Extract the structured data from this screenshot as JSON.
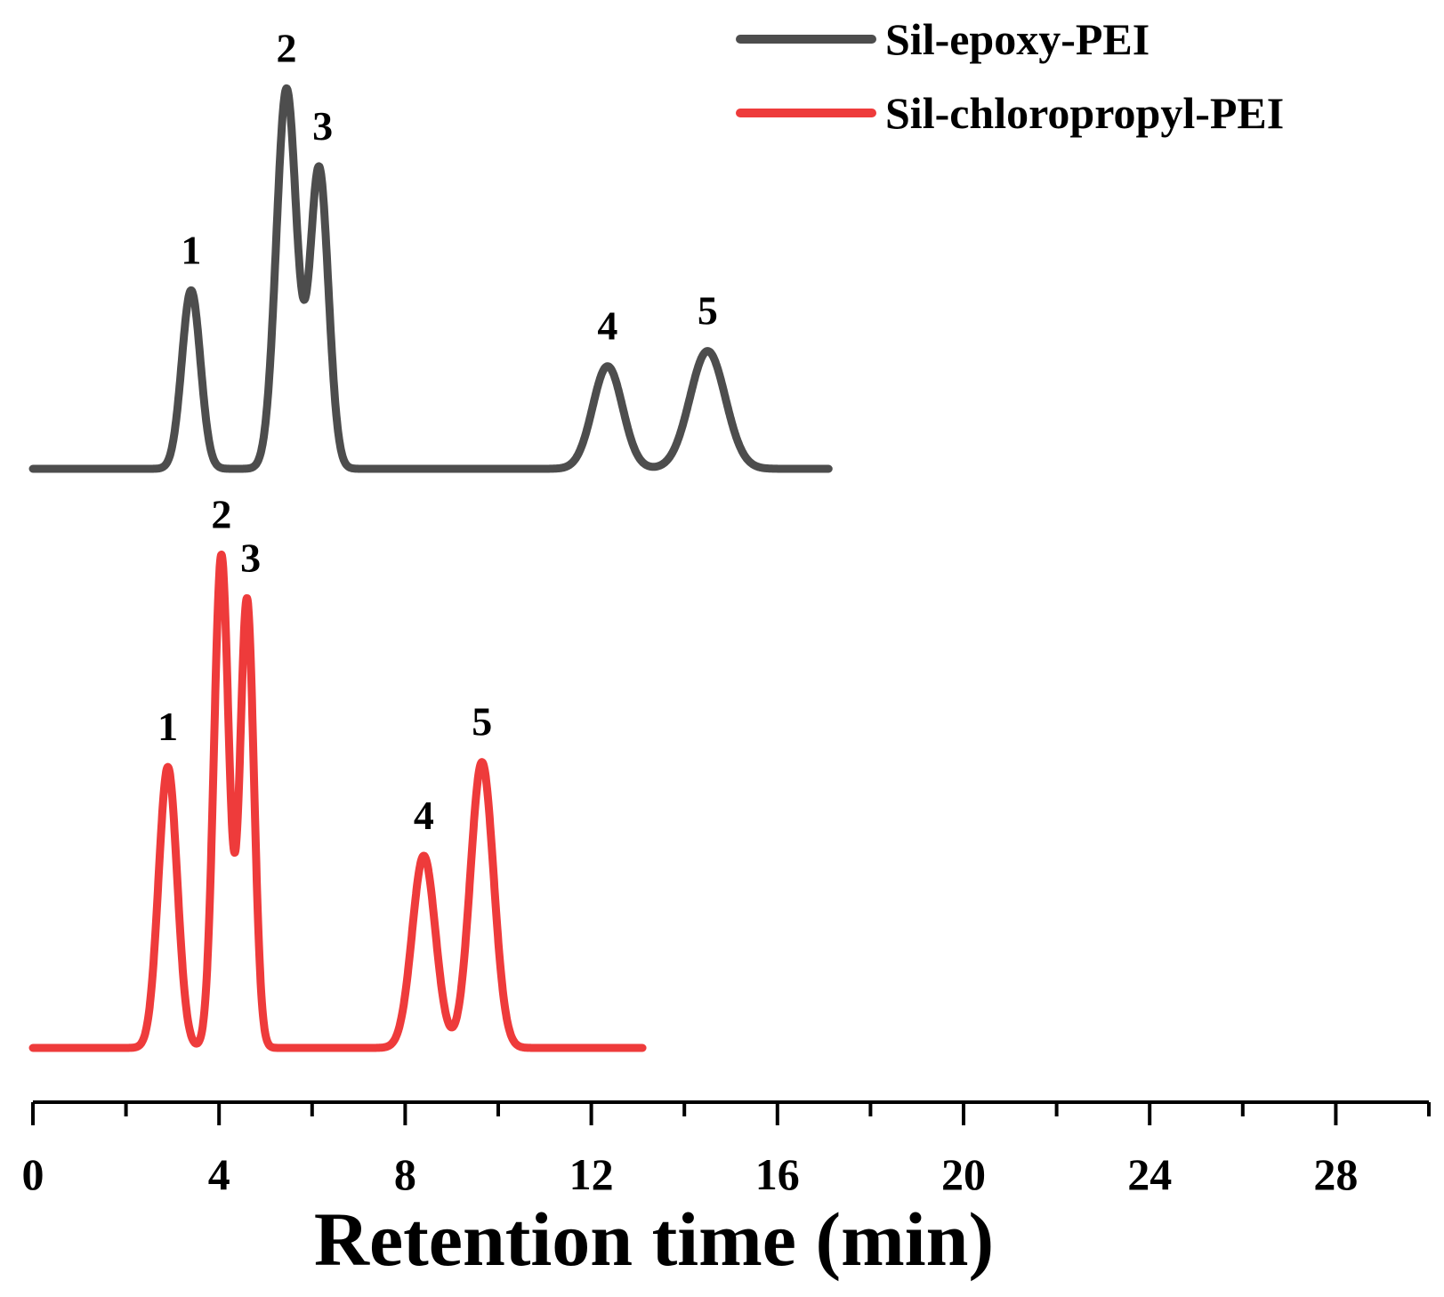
{
  "chart_data": {
    "type": "line",
    "xlabel": "Retention time (min)",
    "ylabel": "",
    "xlim": [
      0,
      30
    ],
    "xticks": [
      0,
      4,
      8,
      12,
      16,
      20,
      24,
      28
    ],
    "minor_tick_step": 2,
    "legend_position": "top-right",
    "series": [
      {
        "name": "Sil-epoxy-PEI",
        "color": "#4d4d4d",
        "x_range": [
          0,
          17.1
        ],
        "peaks": [
          {
            "label": "1",
            "rt": 3.4,
            "height": 0.47,
            "width": 0.2
          },
          {
            "label": "2",
            "rt": 5.45,
            "height": 1.0,
            "width": 0.22
          },
          {
            "label": "3",
            "rt": 6.15,
            "height": 0.79,
            "width": 0.2
          },
          {
            "label": "4",
            "rt": 12.35,
            "height": 0.27,
            "width": 0.32
          },
          {
            "label": "5",
            "rt": 14.5,
            "height": 0.31,
            "width": 0.38
          }
        ]
      },
      {
        "name": "Sil-chloropropyl-PEI",
        "color": "#ee3b3b",
        "x_range": [
          0,
          13.1
        ],
        "peaks": [
          {
            "label": "1",
            "rt": 2.9,
            "height": 0.57,
            "width": 0.2
          },
          {
            "label": "2",
            "rt": 4.05,
            "height": 1.0,
            "width": 0.16
          },
          {
            "label": "3",
            "rt": 4.6,
            "height": 0.91,
            "width": 0.15
          },
          {
            "label": "4",
            "rt": 8.4,
            "height": 0.39,
            "width": 0.25
          },
          {
            "label": "5",
            "rt": 9.65,
            "height": 0.58,
            "width": 0.25
          }
        ]
      }
    ]
  }
}
